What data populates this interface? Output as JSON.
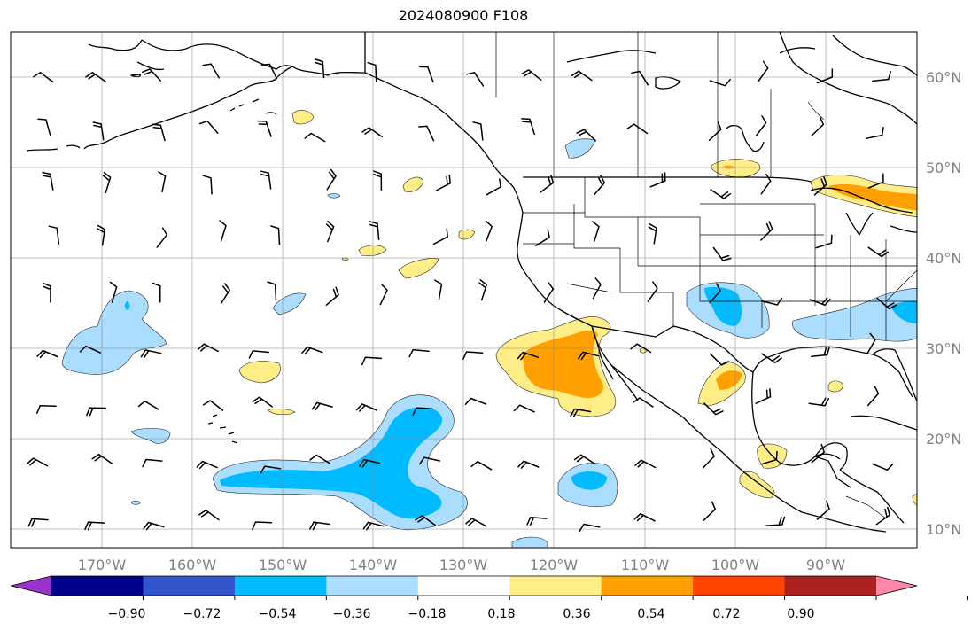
{
  "title": "2024080900 F108",
  "map": {
    "lon_range": [
      -180,
      -80
    ],
    "lat_range": [
      8,
      65
    ],
    "lon_labels": [
      "170°W",
      "160°W",
      "150°W",
      "140°W",
      "130°W",
      "120°W",
      "110°W",
      "100°W",
      "90°W"
    ],
    "lat_labels": [
      "60°N",
      "50°N",
      "40°N",
      "30°N",
      "20°N",
      "10°N"
    ],
    "grid": true,
    "features": [
      "coastlines",
      "country-borders",
      "us-state-borders",
      "canadian-province-borders",
      "wind-barbs",
      "filled-contours"
    ]
  },
  "colorbar": {
    "orientation": "horizontal",
    "extend": "both",
    "tick_labels": [
      "−0.90",
      "−0.72",
      "−0.54",
      "−0.36",
      "−0.18",
      "0.18",
      "0.36",
      "0.54",
      "0.72",
      "0.90"
    ],
    "colors": [
      "#9933cc",
      "#000088",
      "#3355cc",
      "#00bbff",
      "#aaddff",
      "#ffffff",
      "#ffee88",
      "#ffa000",
      "#ff4400",
      "#aa2222",
      "#ff88aa"
    ]
  },
  "contour_colors": {
    "neg_light": "#aaddff",
    "neg_strong": "#00bbff",
    "pos_light": "#ffee88",
    "pos_strong": "#ffa000"
  }
}
